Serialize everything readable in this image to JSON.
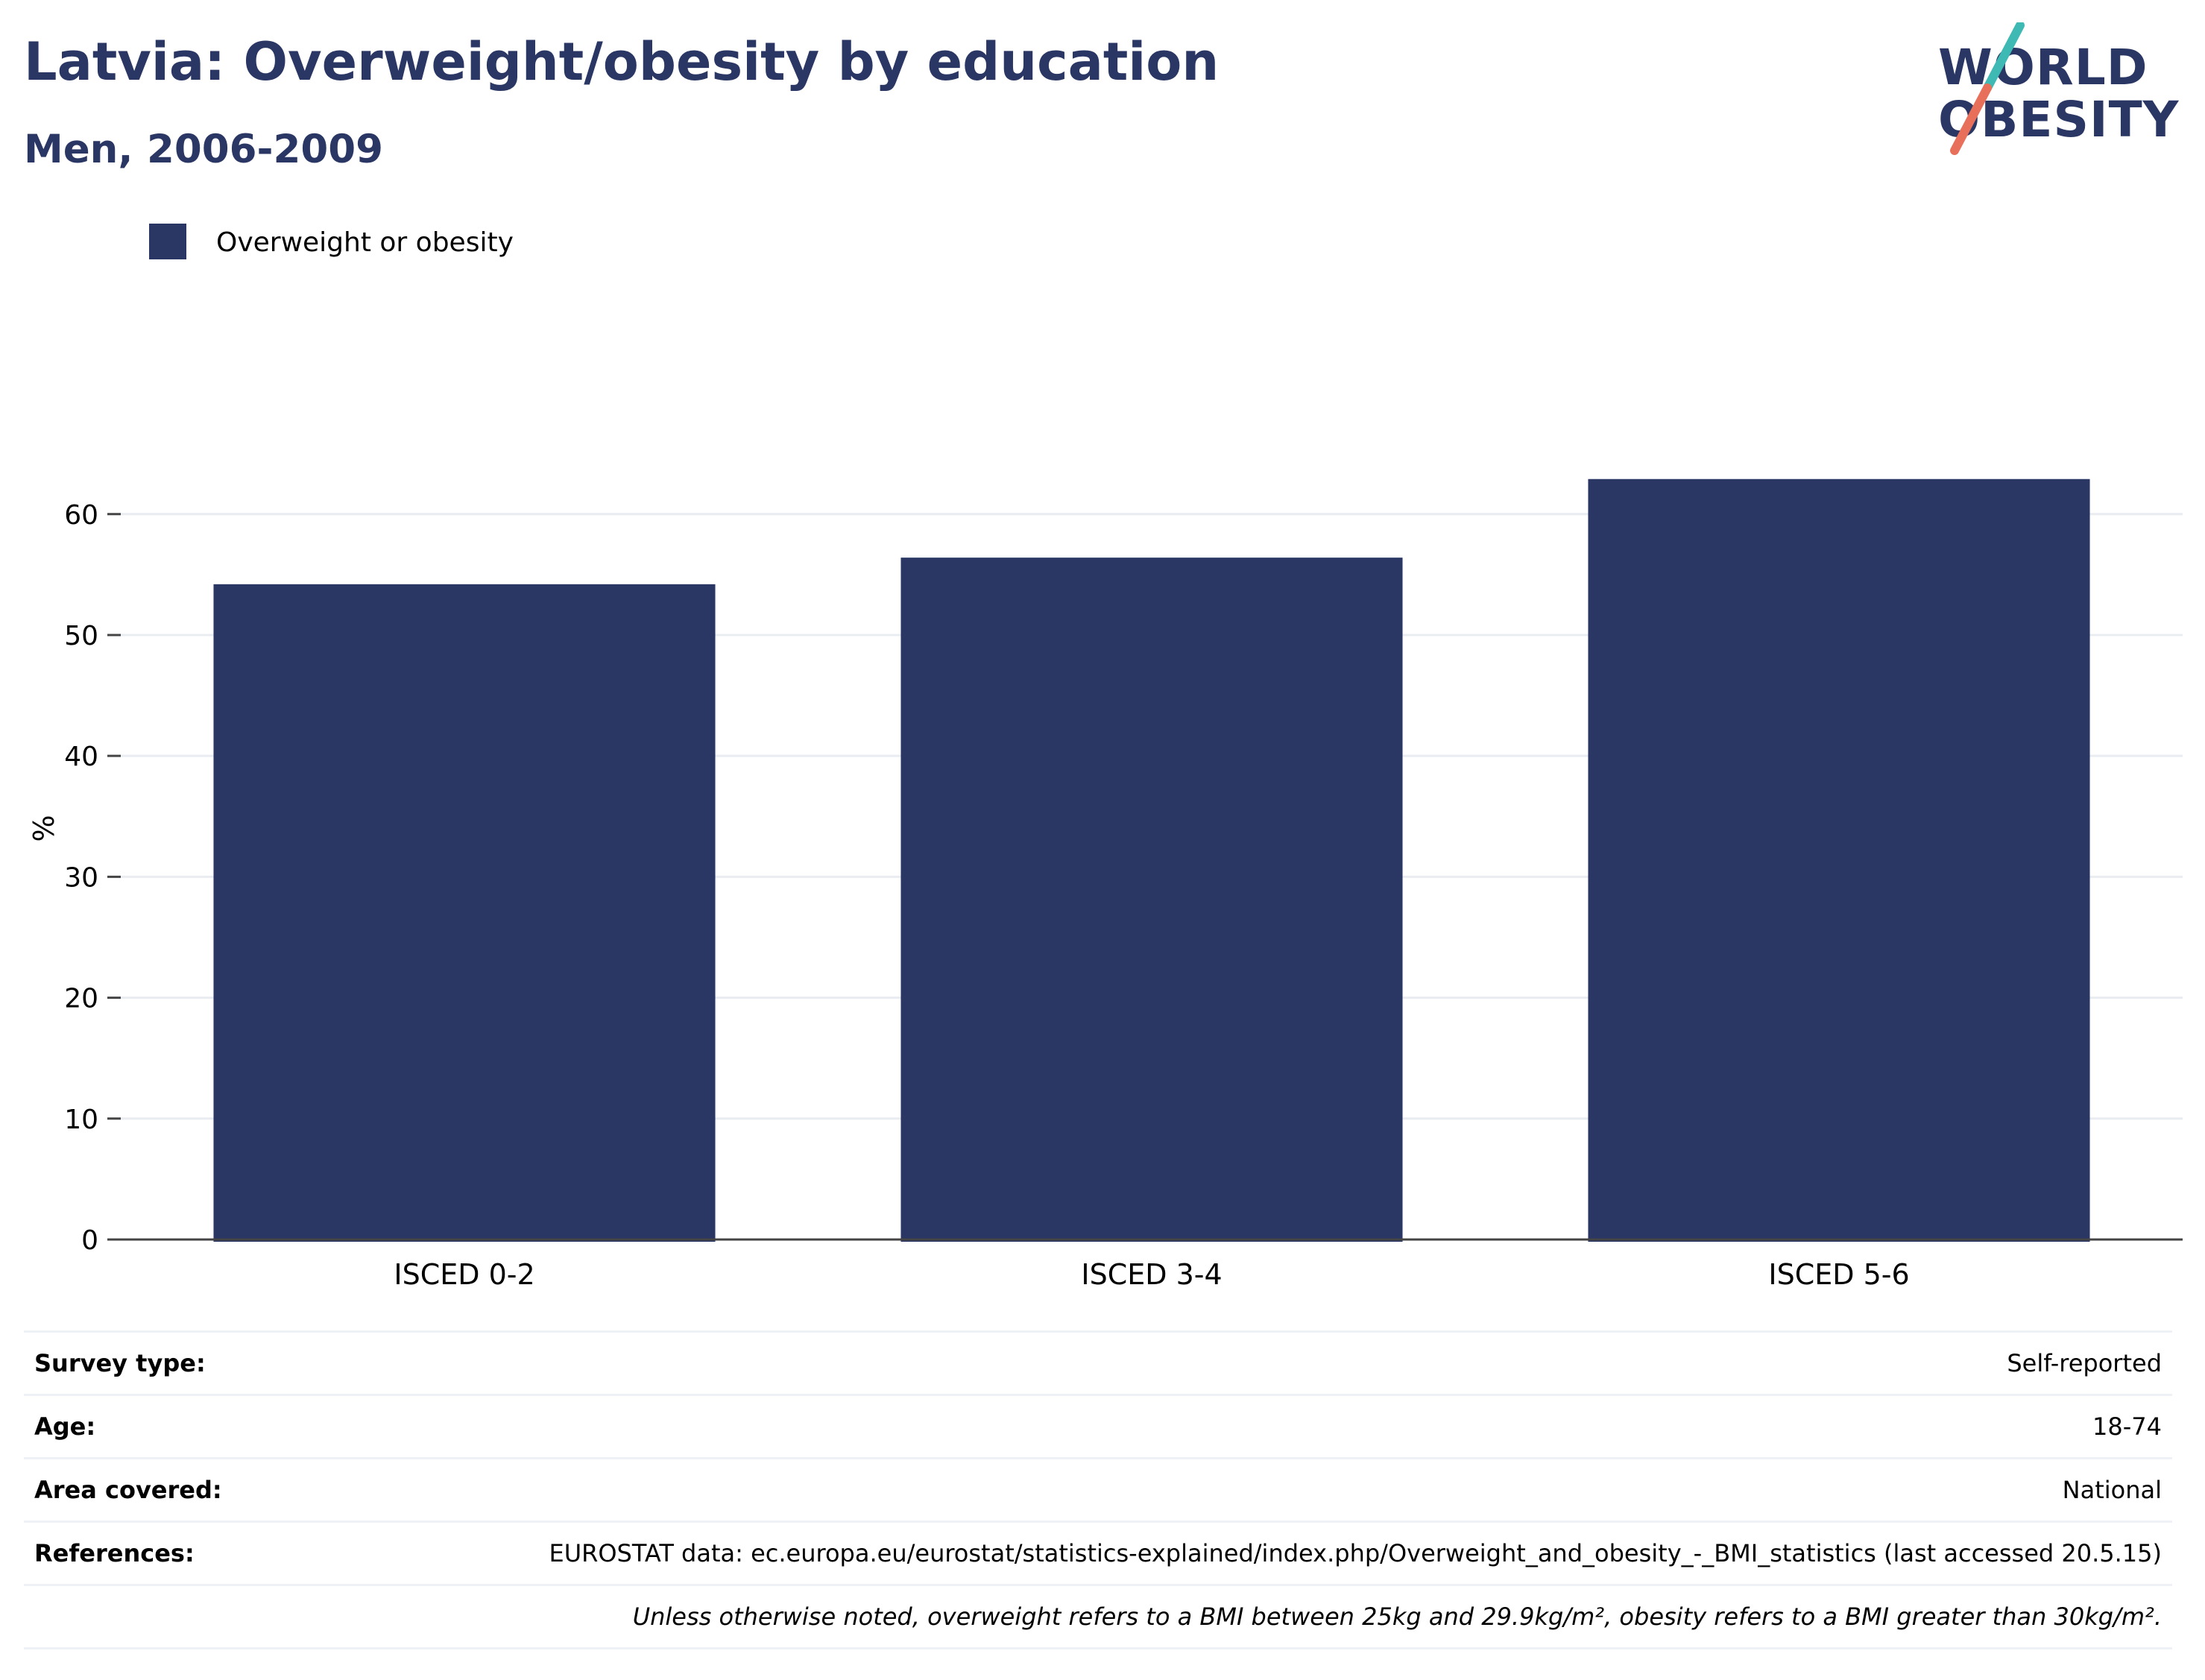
{
  "header": {
    "title": "Latvia: Overweight/obesity by education",
    "subtitle": "Men, 2006-2009"
  },
  "logo": {
    "line1": "WORLD",
    "line2": "OBESITY",
    "accent_teal": "#3fb9b3",
    "accent_coral": "#e8705a"
  },
  "chart_data": {
    "type": "bar",
    "categories": [
      "ISCED 0-2",
      "ISCED 3-4",
      "ISCED 5-6"
    ],
    "series": [
      {
        "name": "Overweight or obesity",
        "values": [
          54.2,
          56.4,
          62.9
        ],
        "color": "#2a3663"
      }
    ],
    "ylabel": "%",
    "ylim": [
      0,
      68
    ],
    "yticks": [
      0,
      10,
      20,
      30,
      40,
      50,
      60
    ],
    "grid": true,
    "legend_position": "top-left"
  },
  "info": {
    "rows": [
      {
        "label": "Survey type:",
        "value": "Self-reported"
      },
      {
        "label": "Age:",
        "value": "18-74"
      },
      {
        "label": "Area covered:",
        "value": "National"
      },
      {
        "label": "References:",
        "value": "EUROSTAT data: ec.europa.eu/eurostat/statistics-explained/index.php/Overweight_and_obesity_-_BMI_statistics (last accessed 20.5.15)"
      }
    ],
    "note": "Unless otherwise noted, overweight refers to a BMI between 25kg and 29.9kg/m², obesity refers to a BMI greater than 30kg/m²."
  }
}
